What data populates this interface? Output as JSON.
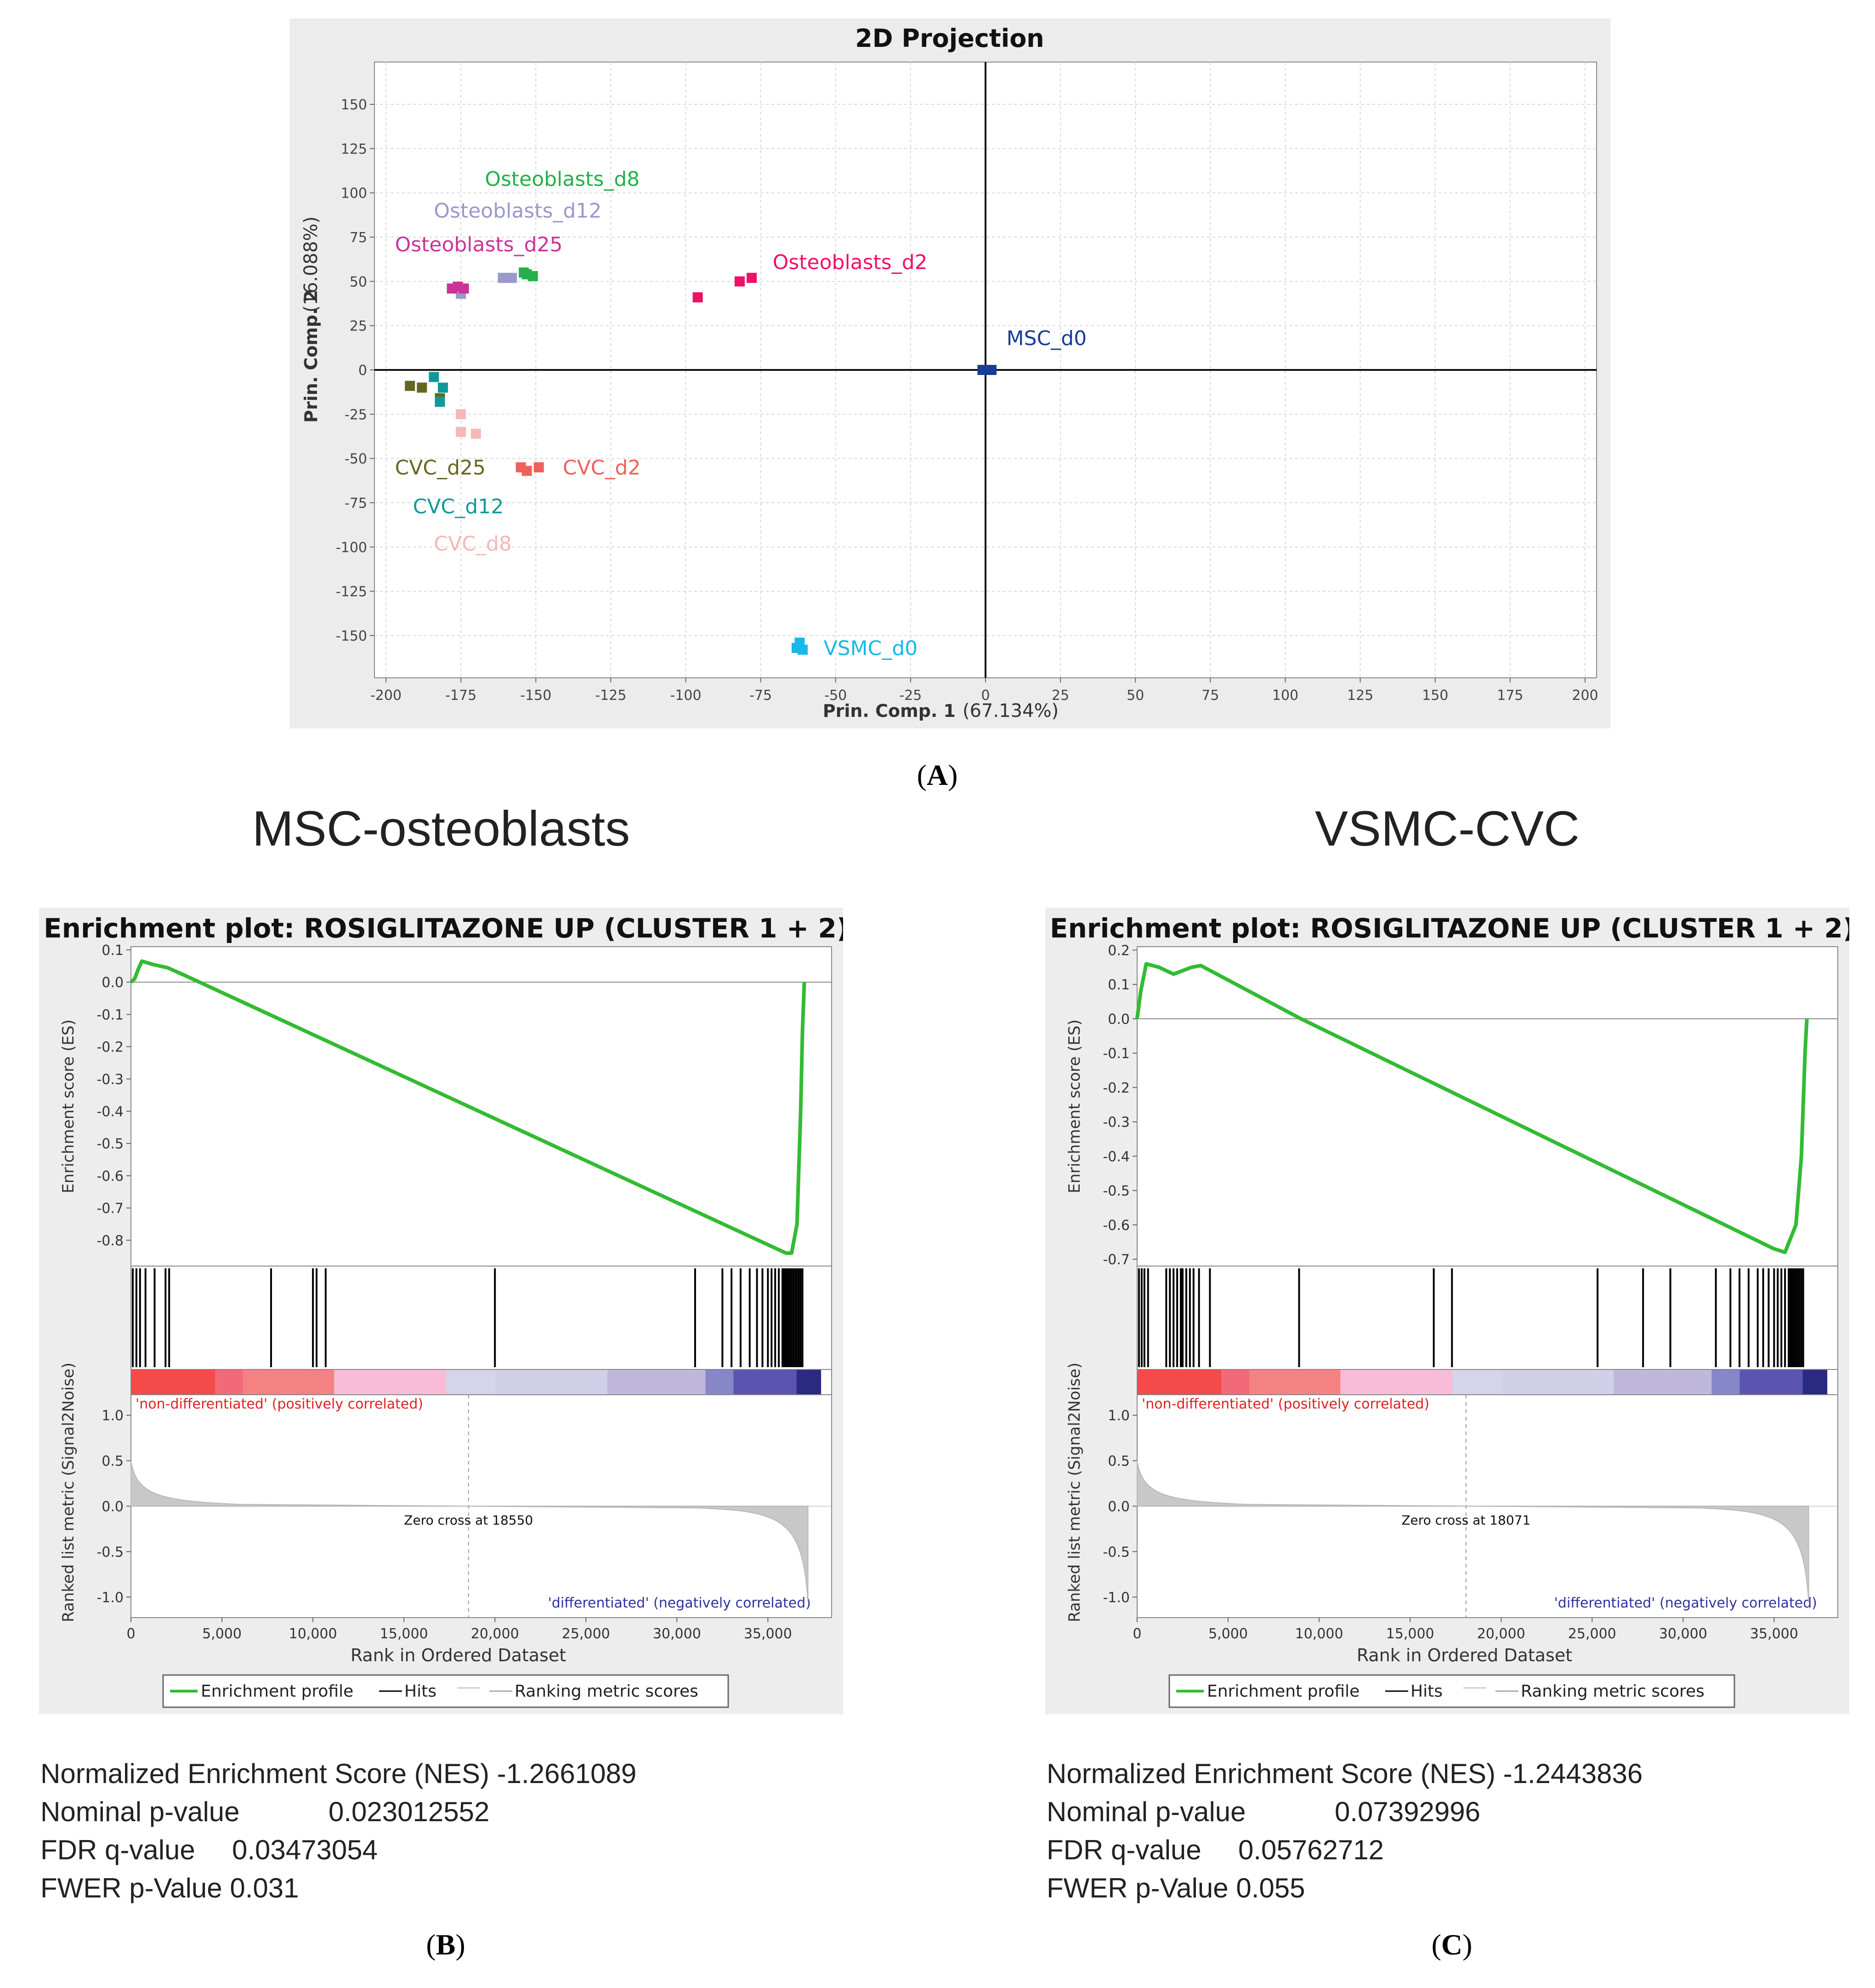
{
  "panel_a": {
    "label": "A",
    "chart_data": {
      "type": "scatter",
      "title": "2D Projection",
      "xlabel": "Prin. Comp. 1",
      "xlabel_pct": "(67.134%)",
      "ylabel": "Prin. Comp. 2",
      "ylabel_pct": "(16.088%)",
      "xlim": [
        -200,
        200
      ],
      "ylim": [
        -170,
        170
      ],
      "xticks": [
        -200,
        -175,
        -150,
        -125,
        -100,
        -75,
        -50,
        -25,
        0,
        25,
        50,
        75,
        100,
        125,
        150,
        175,
        200
      ],
      "yticks": [
        150,
        125,
        100,
        75,
        50,
        25,
        0,
        -25,
        -50,
        -75,
        -100,
        -125,
        -150
      ],
      "grid": true,
      "series": [
        {
          "name": "Osteoblasts_d8",
          "color": "#22b14c",
          "points": [
            [
              -154,
              55
            ],
            [
              -151,
              53
            ],
            [
              -153,
              54
            ]
          ]
        },
        {
          "name": "Osteoblasts_d12",
          "color": "#9999cc",
          "points": [
            [
              -161,
              52
            ],
            [
              -158,
              52
            ],
            [
              -175,
              43
            ]
          ]
        },
        {
          "name": "Osteoblasts_d25",
          "color": "#cc3399",
          "points": [
            [
              -178,
              46
            ],
            [
              -176,
              47
            ],
            [
              -174,
              46
            ]
          ]
        },
        {
          "name": "Osteoblasts_d2",
          "color": "#ee1166",
          "points": [
            [
              -96,
              41
            ],
            [
              -82,
              50
            ],
            [
              -78,
              52
            ]
          ]
        },
        {
          "name": "MSC_d0",
          "color": "#1a3d99",
          "points": [
            [
              -1,
              0
            ],
            [
              1,
              0
            ],
            [
              2,
              0
            ]
          ]
        },
        {
          "name": "CVC_d25",
          "color": "#666622",
          "points": [
            [
              -192,
              -9
            ],
            [
              -188,
              -10
            ],
            [
              -182,
              -16
            ]
          ]
        },
        {
          "name": "CVC_d12",
          "color": "#11999a",
          "points": [
            [
              -184,
              -4
            ],
            [
              -181,
              -10
            ],
            [
              -182,
              -18
            ]
          ]
        },
        {
          "name": "CVC_d8",
          "color": "#f4b8b8",
          "points": [
            [
              -175,
              -25
            ],
            [
              -175,
              -35
            ],
            [
              -170,
              -36
            ]
          ]
        },
        {
          "name": "CVC_d2",
          "color": "#f0605a",
          "points": [
            [
              -155,
              -55
            ],
            [
              -153,
              -57
            ],
            [
              -149,
              -55
            ]
          ]
        },
        {
          "name": "VSMC_d0",
          "color": "#18b8e8",
          "points": [
            [
              -63,
              -157
            ],
            [
              -62,
              -154
            ],
            [
              -61,
              -158
            ]
          ]
        }
      ]
    }
  },
  "panel_b": {
    "label": "B",
    "heading": "MSC-osteoblasts",
    "chart_data": {
      "type": "line",
      "title": "Enrichment plot: ROSIGLITAZONE UP (CLUSTER 1 + 2)",
      "ylabel_top": "Enrichment score (ES)",
      "ylabel_bottom": "Ranked list metric (Signal2Noise)",
      "xlabel": "Rank in Ordered Dataset",
      "xlim": [
        0,
        38500
      ],
      "xticks": [
        "0",
        "5,000",
        "10,000",
        "15,000",
        "20,000",
        "25,000",
        "30,000",
        "35,000"
      ],
      "es_ylim": [
        -0.88,
        0.11
      ],
      "es_yticks": [
        "0.1",
        "0.0",
        "-0.1",
        "-0.2",
        "-0.3",
        "-0.4",
        "-0.5",
        "-0.6",
        "-0.7",
        "-0.8"
      ],
      "metric_yticks": [
        "1.0",
        "0.5",
        "0.0",
        "-0.5",
        "-1.0"
      ],
      "es_curve": [
        [
          0,
          0.0
        ],
        [
          200,
          0.01
        ],
        [
          400,
          0.04
        ],
        [
          600,
          0.065
        ],
        [
          1200,
          0.055
        ],
        [
          2000,
          0.045
        ],
        [
          3000,
          0.02
        ],
        [
          36000,
          -0.84
        ],
        [
          36300,
          -0.84
        ],
        [
          36600,
          -0.75
        ],
        [
          36800,
          -0.4
        ],
        [
          36900,
          -0.15
        ],
        [
          37000,
          0.0
        ]
      ],
      "hits": [
        100,
        300,
        500,
        800,
        1300,
        1900,
        2100,
        7700,
        10000,
        10200,
        10700,
        20000,
        31000,
        32500,
        33000,
        33500,
        34000,
        34400,
        34700,
        35000,
        35200,
        35400,
        35600,
        35800,
        35900,
        36000,
        36100,
        36200,
        36300,
        36400,
        36500,
        36600,
        36700,
        36800,
        36900
      ],
      "zero_cross": 18550,
      "zero_cross_label": "Zero cross at 18550",
      "pos_label": "'non-differentiated' (positively correlated)",
      "neg_label": "'differentiated' (negatively correlated)",
      "legend": [
        "Enrichment profile",
        "Hits",
        "Ranking metric scores"
      ]
    },
    "stats": {
      "nes": "Normalized Enrichment Score (NES) -1.2661089",
      "pval_label": "Nominal p-value",
      "pval": "0.023012552",
      "fdr_label": "FDR q-value",
      "fdr": "0.03473054",
      "fwer": "FWER p-Value 0.031"
    }
  },
  "panel_c": {
    "label": "C",
    "heading": "VSMC-CVC",
    "chart_data": {
      "type": "line",
      "title": "Enrichment plot: ROSIGLITAZONE UP (CLUSTER 1 + 2)",
      "ylabel_top": "Enrichment score (ES)",
      "ylabel_bottom": "Ranked list metric (Signal2Noise)",
      "xlabel": "Rank in Ordered Dataset",
      "xlim": [
        0,
        38500
      ],
      "xticks": [
        "0",
        "5,000",
        "10,000",
        "15,000",
        "20,000",
        "25,000",
        "30,000",
        "35,000"
      ],
      "es_ylim": [
        -0.72,
        0.21
      ],
      "es_yticks": [
        "0.2",
        "0.1",
        "0.0",
        "-0.1",
        "-0.2",
        "-0.3",
        "-0.4",
        "-0.5",
        "-0.6",
        "-0.7"
      ],
      "metric_yticks": [
        "1.0",
        "0.5",
        "0.0",
        "-0.5",
        "-1.0"
      ],
      "es_curve": [
        [
          0,
          0.0
        ],
        [
          200,
          0.08
        ],
        [
          500,
          0.16
        ],
        [
          1200,
          0.15
        ],
        [
          2000,
          0.13
        ],
        [
          3000,
          0.15
        ],
        [
          3500,
          0.155
        ],
        [
          9000,
          0.0
        ],
        [
          35000,
          -0.67
        ],
        [
          35600,
          -0.68
        ],
        [
          36200,
          -0.6
        ],
        [
          36500,
          -0.4
        ],
        [
          36700,
          -0.1
        ],
        [
          36800,
          0.0
        ]
      ],
      "hits": [
        100,
        250,
        400,
        600,
        1600,
        1800,
        2000,
        2200,
        2400,
        2500,
        2700,
        2900,
        3100,
        3400,
        4000,
        8900,
        16300,
        17300,
        25300,
        27800,
        29300,
        31800,
        32600,
        33100,
        33600,
        34100,
        34400,
        34700,
        35000,
        35200,
        35400,
        35600,
        35800,
        35900,
        36000,
        36100,
        36200,
        36300,
        36400,
        36500,
        36600
      ],
      "zero_cross": 18071,
      "zero_cross_label": "Zero cross at 18071",
      "pos_label": "'non-differentiated' (positively correlated)",
      "neg_label": "'differentiated' (negatively correlated)",
      "legend": [
        "Enrichment profile",
        "Hits",
        "Ranking metric scores"
      ]
    },
    "stats": {
      "nes": "Normalized Enrichment Score (NES) -1.2443836",
      "pval_label": "Nominal p-value",
      "pval": "0.07392996",
      "fdr_label": "FDR q-value",
      "fdr": "0.05762712",
      "fwer": "FWER p-Value 0.055"
    }
  }
}
